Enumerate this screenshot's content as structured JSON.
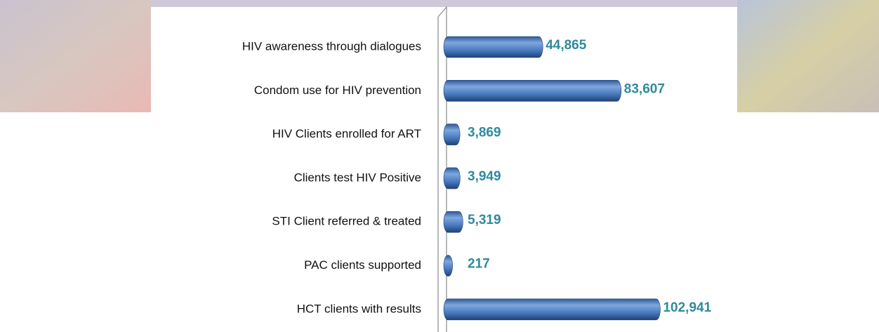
{
  "chart_data": {
    "type": "bar",
    "orientation": "horizontal",
    "categories": [
      "HIV awareness through dialogues",
      "Condom use for HIV prevention",
      "HIV Clients enrolled  for ART",
      "Clients test HIV Positive",
      "STI Client referred  & treated",
      "PAC clients supported",
      "HCT clients with results"
    ],
    "values": [
      44865,
      83607,
      3869,
      3949,
      5319,
      217,
      102941
    ],
    "value_labels": [
      "44,865",
      "83,607",
      "3,869",
      "3,949",
      "5,319",
      "217",
      "102,941"
    ],
    "color": "#4a7bc0"
  }
}
